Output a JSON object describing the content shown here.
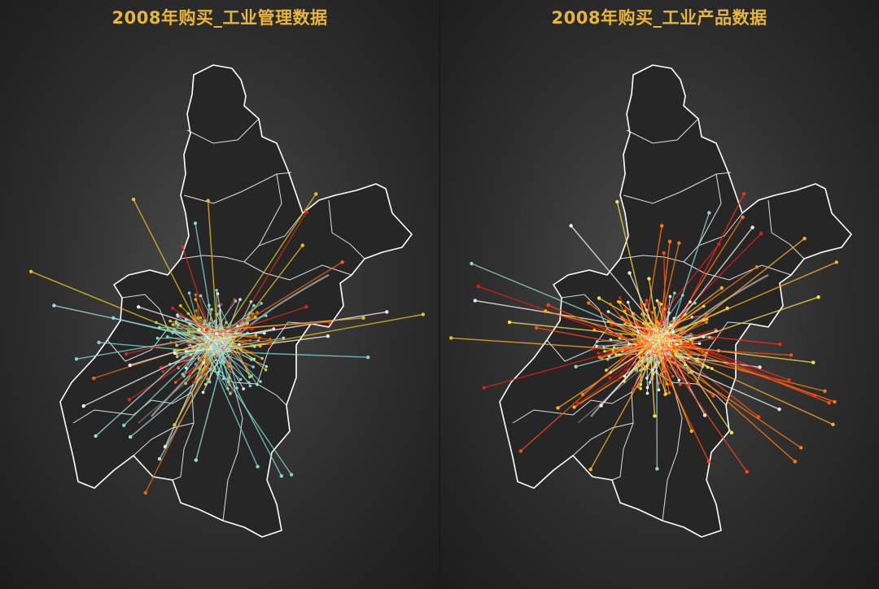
{
  "panels": [
    {
      "id": "left",
      "title": "2008年购买_工业管理数据",
      "palette": [
        "#7fd6d0",
        "#7fd6d0",
        "#9be3dc",
        "#d62a1c",
        "#e8c020",
        "#e26a12",
        "#f0f0f0"
      ],
      "flow_count": 230
    },
    {
      "id": "right",
      "title": "2008年购买_工业产品数据",
      "palette": [
        "#ff2a10",
        "#ff4a10",
        "#e01f10",
        "#ff7a10",
        "#ffb020",
        "#f5e04a",
        "#8fd6d0",
        "#f0f0f0"
      ],
      "flow_count": 300
    }
  ]
}
